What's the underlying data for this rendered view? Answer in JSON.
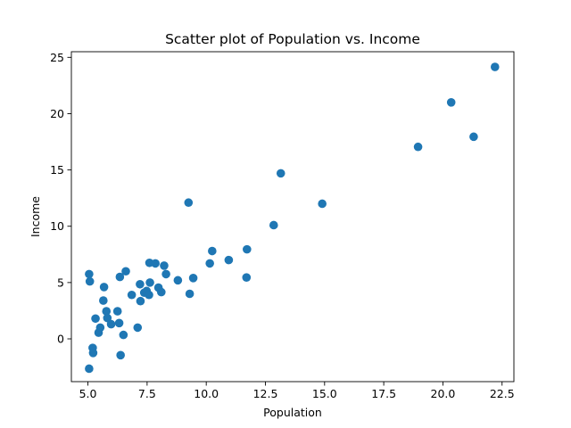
{
  "chart_data": {
    "type": "scatter",
    "title": "Scatter plot of Population vs. Income",
    "xlabel": "Population",
    "ylabel": "Income",
    "xlim": [
      4.3,
      23.0
    ],
    "ylim": [
      -3.8,
      25.5
    ],
    "grid": false,
    "color": "#1f77b4",
    "x_ticks": [
      5.0,
      7.5,
      10.0,
      12.5,
      15.0,
      17.5,
      20.0,
      22.5
    ],
    "x_tick_labels": [
      "5.0",
      "7.5",
      "10.0",
      "12.5",
      "15.0",
      "17.5",
      "20.0",
      "22.5"
    ],
    "y_ticks": [
      0,
      5,
      10,
      15,
      20,
      25
    ],
    "y_tick_labels": [
      "0",
      "5",
      "10",
      "15",
      "20",
      "25"
    ],
    "points": [
      [
        5.05,
        5.75
      ],
      [
        5.08,
        5.1
      ],
      [
        5.2,
        -0.8
      ],
      [
        5.22,
        -1.25
      ],
      [
        5.05,
        -2.65
      ],
      [
        5.32,
        1.8
      ],
      [
        5.45,
        0.55
      ],
      [
        5.52,
        1.0
      ],
      [
        5.65,
        3.4
      ],
      [
        5.68,
        4.6
      ],
      [
        5.78,
        2.45
      ],
      [
        5.82,
        1.85
      ],
      [
        5.98,
        1.3
      ],
      [
        6.25,
        2.45
      ],
      [
        6.32,
        1.4
      ],
      [
        6.35,
        5.5
      ],
      [
        6.38,
        -1.45
      ],
      [
        6.5,
        0.35
      ],
      [
        6.6,
        6.0
      ],
      [
        6.85,
        3.9
      ],
      [
        7.1,
        1.0
      ],
      [
        7.2,
        4.85
      ],
      [
        7.22,
        3.35
      ],
      [
        7.38,
        4.1
      ],
      [
        7.48,
        4.25
      ],
      [
        7.58,
        3.9
      ],
      [
        7.6,
        6.75
      ],
      [
        7.62,
        5.0
      ],
      [
        7.85,
        6.7
      ],
      [
        7.98,
        4.55
      ],
      [
        8.1,
        4.15
      ],
      [
        8.22,
        6.5
      ],
      [
        8.3,
        5.75
      ],
      [
        8.8,
        5.2
      ],
      [
        9.25,
        12.1
      ],
      [
        9.3,
        4.0
      ],
      [
        9.45,
        5.4
      ],
      [
        10.15,
        6.7
      ],
      [
        10.25,
        7.8
      ],
      [
        10.95,
        7.0
      ],
      [
        11.7,
        5.45
      ],
      [
        11.72,
        7.95
      ],
      [
        12.85,
        10.1
      ],
      [
        13.15,
        14.7
      ],
      [
        14.9,
        12.0
      ],
      [
        18.95,
        17.05
      ],
      [
        20.35,
        21.0
      ],
      [
        21.3,
        17.95
      ],
      [
        22.2,
        24.15
      ]
    ]
  }
}
